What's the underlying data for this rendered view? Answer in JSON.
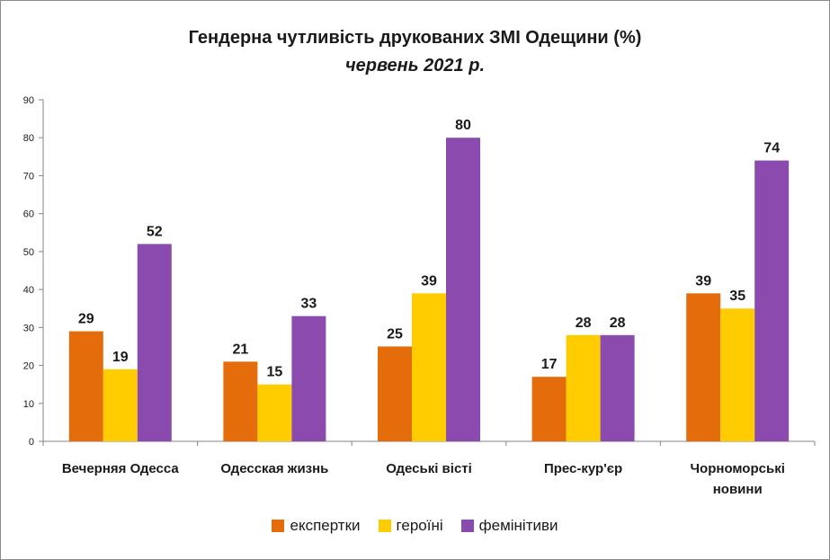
{
  "chart_data": {
    "type": "bar",
    "title": "Гендерна чутливість друкованих ЗМІ Одещини (%)",
    "subtitle": "червень 2021 р.",
    "xlabel": "",
    "ylabel": "",
    "ylim": [
      0,
      90
    ],
    "yticks": [
      0,
      10,
      20,
      30,
      40,
      50,
      60,
      70,
      80,
      90
    ],
    "grid": false,
    "legend_position": "bottom",
    "categories": [
      [
        "Вечерняя Одесса"
      ],
      [
        "Одесская жизнь"
      ],
      [
        "Одеські вісті"
      ],
      [
        "Прес-кур'єр"
      ],
      [
        "Чорноморські",
        "новини"
      ]
    ],
    "series": [
      {
        "name": "експертки",
        "color": "#E46C0A",
        "values": [
          29,
          21,
          25,
          17,
          39
        ]
      },
      {
        "name": "героїні",
        "color": "#FFCC00",
        "values": [
          19,
          15,
          39,
          28,
          35
        ]
      },
      {
        "name": "фемінітиви",
        "color": "#8B4BAE",
        "values": [
          52,
          33,
          80,
          28,
          74
        ]
      }
    ]
  }
}
